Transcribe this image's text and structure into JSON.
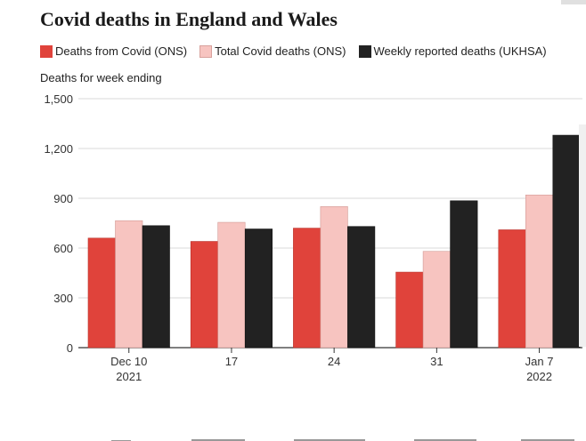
{
  "title": "Covid deaths in England and Wales",
  "legend": [
    {
      "label": "Deaths from Covid (ONS)",
      "color": "#e0433b"
    },
    {
      "label": "Total Covid deaths (ONS)",
      "color": "#f7c4c0"
    },
    {
      "label": "Weekly reported deaths (UKHSA)",
      "color": "#222222"
    }
  ],
  "chart_data": {
    "type": "bar",
    "title": "Covid deaths in England and Wales",
    "xlabel": "",
    "ylabel": "Deaths for week ending",
    "ylim": [
      0,
      1500
    ],
    "yticks": [
      0,
      300,
      600,
      900,
      1200,
      1500
    ],
    "ytick_labels": [
      "0",
      "300",
      "600",
      "900",
      "1,200",
      "1,500"
    ],
    "categories": [
      "Dec 10 2021",
      "17",
      "24",
      "31",
      "Jan 7 2022"
    ],
    "category_label_lines": [
      [
        "Dec 10",
        "2021"
      ],
      [
        "17"
      ],
      [
        "24"
      ],
      [
        "31"
      ],
      [
        "Jan 7",
        "2022"
      ]
    ],
    "series": [
      {
        "name": "Deaths from Covid (ONS)",
        "color": "#e0433b",
        "values": [
          660,
          640,
          720,
          455,
          710
        ]
      },
      {
        "name": "Total Covid deaths (ONS)",
        "color": "#f7c4c0",
        "values": [
          765,
          755,
          850,
          580,
          920
        ]
      },
      {
        "name": "Weekly reported deaths (UKHSA)",
        "color": "#222222",
        "values": [
          735,
          715,
          730,
          885,
          1280
        ]
      }
    ],
    "grid": true,
    "legend_position": "top"
  }
}
